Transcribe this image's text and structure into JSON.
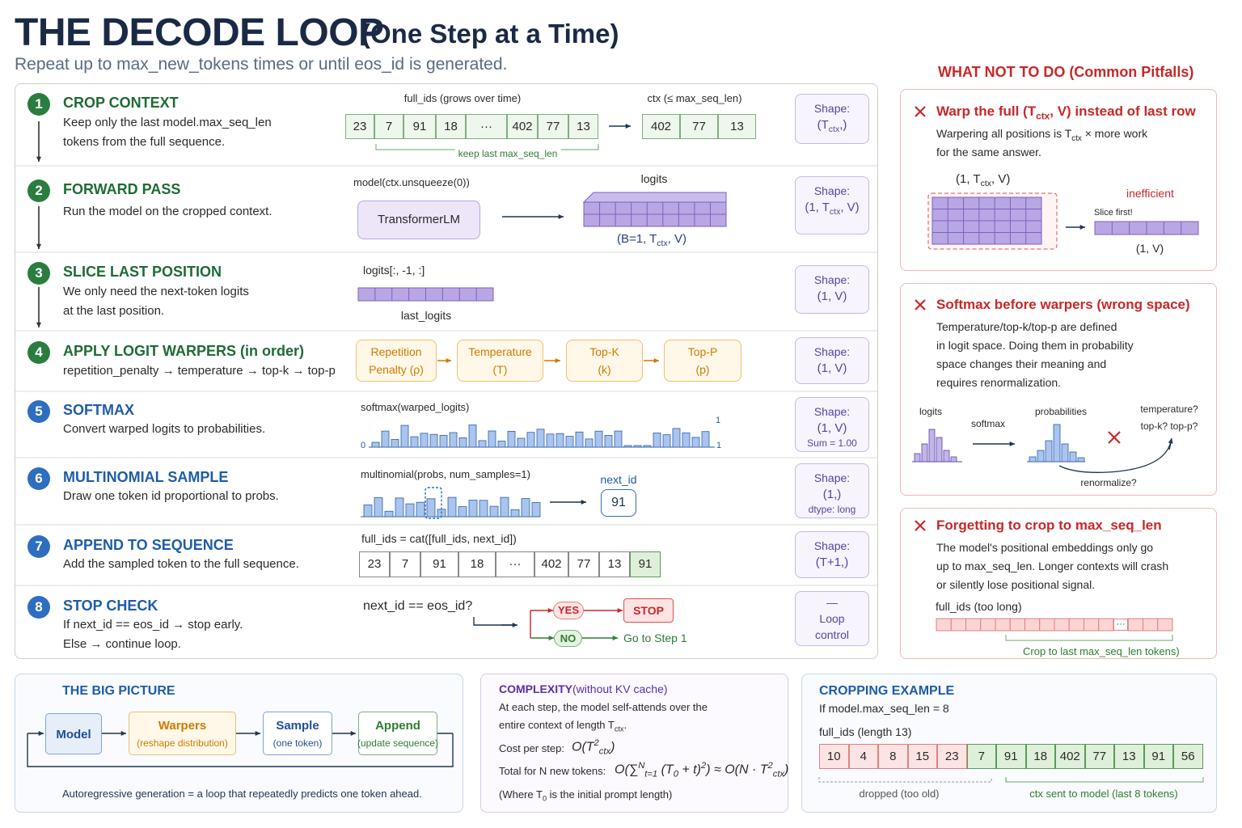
{
  "header": {
    "title": "THE DECODE LOOP",
    "title_suffix": "(One Step at a Time)",
    "subtitle": "Repeat up to max_new_tokens times or until eos_id is generated."
  },
  "steps": [
    {
      "number": "1",
      "title": "CROP CONTEXT",
      "description": [
        "Keep only the last model.max_seq_len",
        "tokens from the full sequence."
      ],
      "full_ids_label": "full_ids (grows over time)",
      "full_ids": [
        "23",
        "7",
        "91",
        "18",
        "···",
        "402",
        "77",
        "13"
      ],
      "brace_label": "keep last max_seq_len",
      "ctx_label": "ctx (≤ max_seq_len)",
      "ctx": [
        "402",
        "77",
        "13"
      ],
      "shape": {
        "label": "Shape:",
        "value": [
          "(T",
          "ctx",
          ",)"
        ]
      }
    },
    {
      "number": "2",
      "title": "FORWARD PASS",
      "description": [
        "Run the model on the cropped context."
      ],
      "call": "model(ctx.unsqueeze(0))",
      "model": "TransformerLM",
      "logits_label": "logits",
      "logits_shape": [
        "(B=1, T",
        "ctx",
        ", V)"
      ],
      "shape": {
        "label": "Shape:",
        "value": [
          "(1, T",
          "ctx",
          ", V)"
        ]
      }
    },
    {
      "number": "3",
      "title": "SLICE LAST POSITION",
      "description": [
        "We only need the next-token logits",
        "at the last position."
      ],
      "slice": "logits[:, -1, :]",
      "slice_name": "last_logits",
      "shape": {
        "label": "Shape:",
        "value": [
          "(1, V)"
        ]
      }
    },
    {
      "number": "4",
      "title": "APPLY LOGIT WARPERS (in order)",
      "description": [
        "repetition_penalty → temperature → top-k → top-p"
      ],
      "warpers": [
        [
          "Repetition",
          "Penalty (ρ)"
        ],
        [
          "Temperature",
          "(T)"
        ],
        [
          "Top-K",
          "(k)"
        ],
        [
          "Top-P",
          "(p)"
        ]
      ],
      "shape": {
        "label": "Shape:",
        "value": [
          "(1, V)"
        ]
      }
    },
    {
      "number": "5",
      "title": "SOFTMAX",
      "description": [
        "Convert warped logits to probabilities."
      ],
      "call": "softmax(warped_logits)",
      "axis_labels": [
        "0",
        "1",
        "1"
      ],
      "shape": {
        "label": "Shape:",
        "value": [
          "(1, V)"
        ],
        "extra": "Sum = 1.00"
      }
    },
    {
      "number": "6",
      "title": "MULTINOMIAL SAMPLE",
      "description": [
        "Draw one token id proportional to probs."
      ],
      "call": "multinomial(probs, num_samples=1)",
      "next_id_label": "next_id",
      "next_id": "91",
      "shape": {
        "label": "Shape:",
        "value": [
          "(1,)"
        ],
        "extra": "dtype: long"
      }
    },
    {
      "number": "7",
      "title": "APPEND TO SEQUENCE",
      "description": [
        "Add the sampled token to the full sequence."
      ],
      "call": "full_ids = cat([full_ids, next_id])",
      "full_ids": [
        "23",
        "7",
        "91",
        "18",
        "···",
        "402",
        "77",
        "13",
        "91"
      ],
      "shape": {
        "label": "Shape:",
        "value": [
          "(T+1,)"
        ]
      }
    },
    {
      "number": "8",
      "title": "STOP CHECK",
      "description": [
        "If next_id == eos_id → stop early.",
        "Else → continue loop."
      ],
      "condition": "next_id == eos_id?",
      "yes": "YES",
      "stop": "STOP",
      "no": "NO",
      "no_action": "Go to Step 1",
      "shape": {
        "label": "—",
        "value": [
          "Loop control"
        ]
      }
    }
  ],
  "pitfalls": {
    "heading": "WHAT NOT TO DO (Common Pitfalls)",
    "items": [
      {
        "title": [
          "Warp the full (T",
          "ctx",
          ", V) instead of last row"
        ],
        "text": [
          [
            "Warpering all positions is T",
            "ctx",
            " × more work"
          ],
          [
            "for the same answer."
          ]
        ],
        "grid_label": [
          "(1, T",
          "ctx",
          ", V)"
        ],
        "tag": "inefficient",
        "arrow_label": "Slice first!",
        "result_label": "(1, V)"
      },
      {
        "title": [
          "Softmax before warpers (wrong space)"
        ],
        "text": [
          [
            "Temperature/top-k/top-p are defined"
          ],
          [
            "in logit space. Doing them in probability"
          ],
          [
            "space changes their meaning and"
          ],
          [
            "requires renormalization."
          ]
        ],
        "logits": "logits",
        "softmax": "softmax",
        "probabilities": "probabilities",
        "question": [
          "temperature?",
          "top-k? top-p?"
        ],
        "renormalize": "renormalize?"
      },
      {
        "title": [
          "Forgetting to crop to max_seq_len"
        ],
        "text": [
          [
            "The model's positional embeddings only go"
          ],
          [
            "up to max_seq_len. Longer contexts will crash"
          ],
          [
            "or silently lose positional signal."
          ]
        ],
        "seq_label": "full_ids (too long)",
        "ellipsis": "···",
        "brace_label": "Crop to last max_seq_len tokens)"
      }
    ]
  },
  "bottom": {
    "big_picture": {
      "title": "THE BIG PICTURE",
      "nodes": [
        {
          "name": "Model"
        },
        {
          "name": "Warpers",
          "sub": "(reshape distribution)"
        },
        {
          "name": "Sample",
          "sub": "(one token)"
        },
        {
          "name": "Append",
          "sub": "(update sequence)"
        }
      ],
      "caption": "Autoregressive generation = a loop that repeatedly predicts one token ahead."
    },
    "complexity": {
      "title": "COMPLEXITY",
      "title_note": "(without KV cache)",
      "text": [
        [
          "At each step, the model self-attends over the"
        ],
        [
          "entire context of length T",
          "ctx",
          "."
        ]
      ],
      "cost_label": "Cost per step:",
      "cost": [
        "O(T",
        "2",
        "ctx",
        ")"
      ],
      "total_label": "Total for N new tokens:",
      "total": [
        "O(",
        "∑",
        "N",
        "t=1",
        " (T",
        "0",
        " + t)",
        "2",
        ") ≈ O(N · T",
        "2",
        "ctx",
        ")"
      ],
      "note": [
        "(Where T",
        "0",
        " is the initial prompt length)"
      ]
    },
    "cropping": {
      "title": "CROPPING EXAMPLE",
      "setting": "If model.max_seq_len = 8",
      "seq_label": "full_ids (length 13)",
      "dropped_tokens": [
        "10",
        "4",
        "8",
        "15",
        "23"
      ],
      "kept_tokens": [
        "7",
        "91",
        "18",
        "402",
        "77",
        "13",
        "91",
        "56"
      ],
      "dropped": "dropped (too old)",
      "kept": "ctx sent to model (last 8 tokens)"
    }
  }
}
